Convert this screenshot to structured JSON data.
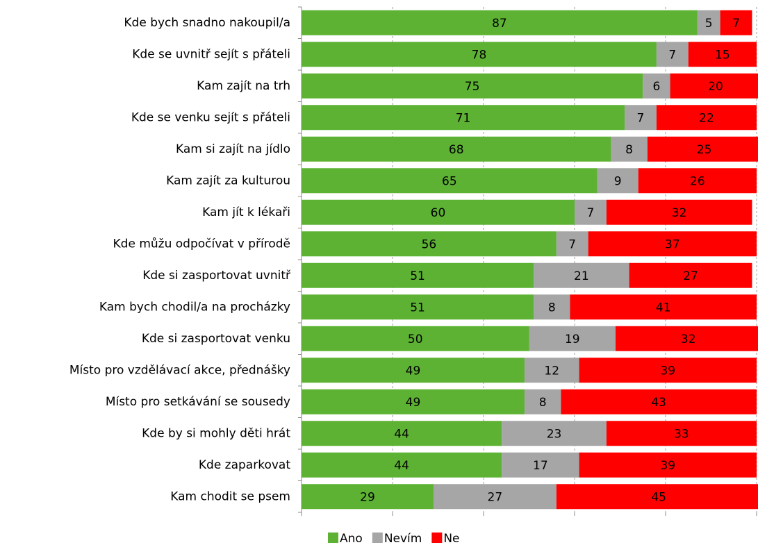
{
  "chart_data": {
    "type": "stacked_barh",
    "categories": [
      "Kde bych snadno nakoupil/a",
      "Kde se uvnitř sejít s přáteli",
      "Kam zajít na trh",
      "Kde se venku sejít s přáteli",
      "Kam si zajít na jídlo",
      "Kam zajít za kulturou",
      "Kam jít k lékaři",
      "Kde můžu odpočívat v přírodě",
      "Kde si zasportovat uvnitř",
      "Kam bych chodil/a na procházky",
      "Kde si zasportovat venku",
      "Místo pro vzdělávací akce, přednášky",
      "Místo pro setkávání se sousedy",
      "Kde by si mohly děti hrát",
      "Kde zaparkovat",
      "Kam chodit se psem"
    ],
    "series": [
      {
        "name": "Ano",
        "color": "#5db233",
        "values": [
          87,
          78,
          75,
          71,
          68,
          65,
          60,
          56,
          51,
          51,
          50,
          49,
          49,
          44,
          44,
          29
        ]
      },
      {
        "name": "Nevím",
        "color": "#a6a6a6",
        "values": [
          5,
          7,
          6,
          7,
          8,
          9,
          7,
          7,
          21,
          8,
          19,
          12,
          8,
          23,
          17,
          27
        ]
      },
      {
        "name": "Ne",
        "color": "#ff0000",
        "values": [
          7,
          15,
          20,
          22,
          25,
          26,
          32,
          37,
          27,
          41,
          32,
          39,
          43,
          33,
          39,
          45
        ]
      }
    ],
    "xlim": [
      0,
      100
    ],
    "xticks": [
      0,
      20,
      40,
      60,
      80,
      100
    ],
    "grid": true,
    "legend": "bottom"
  }
}
